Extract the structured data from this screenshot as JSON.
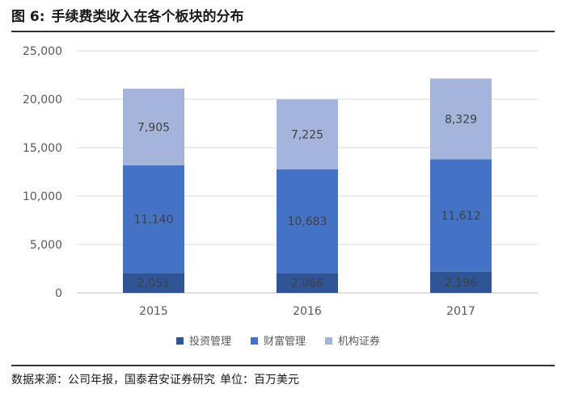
{
  "figure": {
    "label": "图 6:",
    "title": "手续费类收入在各个板块的分布"
  },
  "source": {
    "text": "数据来源：公司年报，国泰君安证券研究",
    "unit": "单位：百万美元"
  },
  "chart_data": {
    "type": "bar",
    "stacked": true,
    "categories": [
      "2015",
      "2016",
      "2017"
    ],
    "series": [
      {
        "name": "投资管理",
        "values": [
          2051,
          2066,
          2196
        ],
        "color": "#2f5597"
      },
      {
        "name": "财富管理",
        "values": [
          11140,
          10683,
          11612
        ],
        "color": "#4472c4"
      },
      {
        "name": "机构证券",
        "values": [
          7905,
          7225,
          8329
        ],
        "color": "#a5b4da"
      }
    ],
    "ylim": [
      0,
      25000
    ],
    "yticks": [
      "0",
      "5,000",
      "10,000",
      "15,000",
      "20,000",
      "25,000"
    ],
    "grid": true,
    "legend_position": "bottom",
    "data_label_color": "#404040",
    "axis_text_color": "#595959",
    "grid_color": "#d9d9d9"
  }
}
